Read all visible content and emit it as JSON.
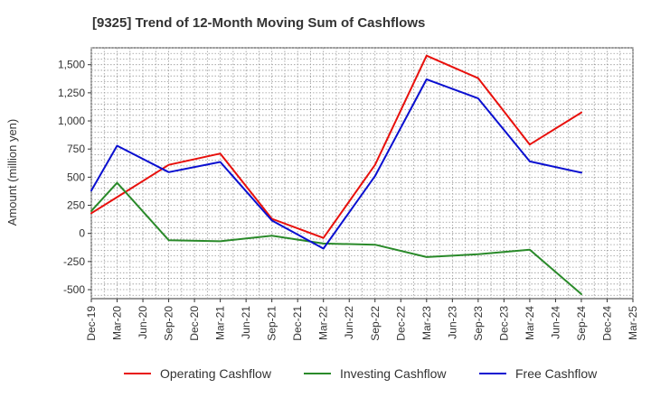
{
  "chart_data": {
    "type": "line",
    "title": "[9325]  Trend of 12-Month Moving Sum of Cashflows",
    "xlabel": "",
    "ylabel": "Amount (million yen)",
    "categories": [
      "Dec-19",
      "Mar-20",
      "Jun-20",
      "Sep-20",
      "Dec-20",
      "Mar-21",
      "Jun-21",
      "Sep-21",
      "Dec-21",
      "Mar-22",
      "Jun-22",
      "Sep-22",
      "Dec-22",
      "Mar-23",
      "Jun-23",
      "Sep-23",
      "Dec-23",
      "Mar-24",
      "Jun-24",
      "Sep-24",
      "Dec-24",
      "Mar-25"
    ],
    "ylim": [
      -580,
      1650
    ],
    "yticks": [
      -500,
      -250,
      0,
      250,
      500,
      750,
      1000,
      1250,
      1500
    ],
    "ytick_labels": [
      "-500",
      "-250",
      "0",
      "250",
      "500",
      "750",
      "1,000",
      "1,250",
      "1,500"
    ],
    "grid": true,
    "legend_position": "bottom",
    "series": [
      {
        "name": "Operating Cashflow",
        "color": "#e8100c",
        "values": [
          180,
          null,
          null,
          610,
          null,
          710,
          null,
          130,
          null,
          -40,
          null,
          610,
          null,
          1580,
          null,
          1380,
          null,
          790,
          null,
          1075,
          null,
          null
        ]
      },
      {
        "name": "Investing Cashflow",
        "color": "#2a8a2a",
        "values": [
          200,
          450,
          null,
          -60,
          null,
          -70,
          null,
          -20,
          null,
          -90,
          null,
          -100,
          null,
          -210,
          null,
          -185,
          null,
          -145,
          null,
          -540,
          null,
          null
        ]
      },
      {
        "name": "Free Cashflow",
        "color": "#0a0fd0",
        "values": [
          380,
          780,
          null,
          545,
          null,
          635,
          null,
          115,
          null,
          -135,
          null,
          510,
          null,
          1370,
          null,
          1200,
          null,
          640,
          null,
          540,
          null,
          null
        ]
      }
    ]
  }
}
